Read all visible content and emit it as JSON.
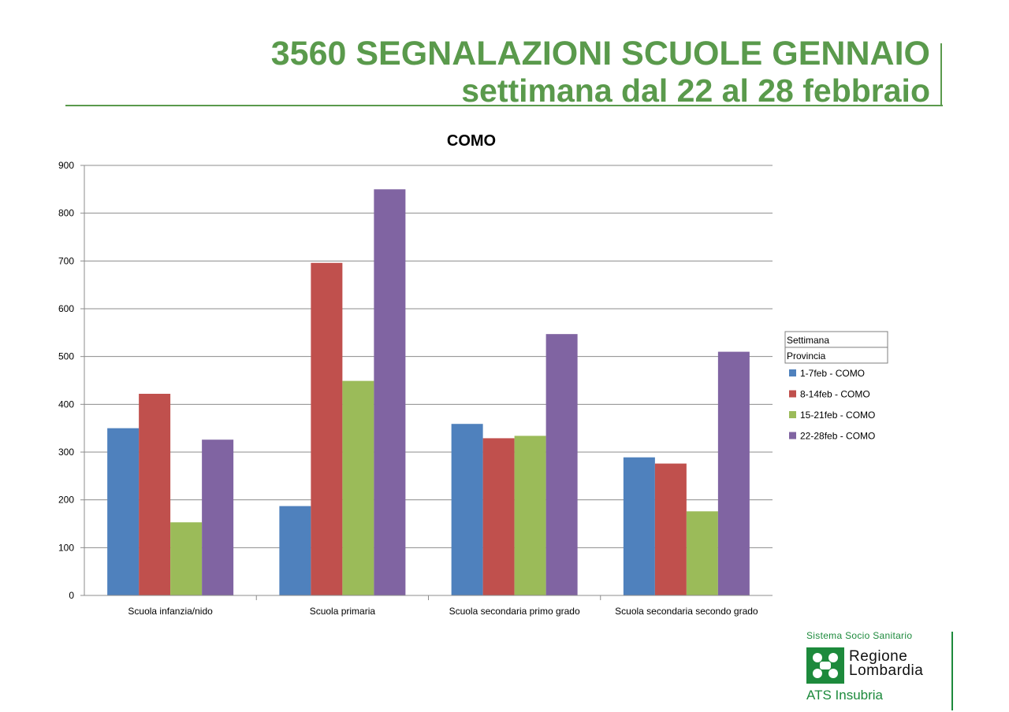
{
  "header": {
    "title_line1": "3560 SEGNALAZIONI SCUOLE GENNAIO",
    "title_line2": "settimana dal 22 al 28 febbraio"
  },
  "chart_data": {
    "type": "bar",
    "title": "COMO",
    "xlabel": "",
    "ylabel": "",
    "ylim": [
      0,
      900
    ],
    "yticks": [
      0,
      100,
      200,
      300,
      400,
      500,
      600,
      700,
      800,
      900
    ],
    "grid": true,
    "legend_placement": "right",
    "legend_header": [
      "Settimana",
      "Provincia"
    ],
    "categories": [
      "Scuola infanzia/nido",
      "Scuola primaria",
      "Scuola secondaria primo grado",
      "Scuola secondaria secondo grado"
    ],
    "series": [
      {
        "name": "1-7feb - COMO",
        "color": "#4f81bd",
        "values": [
          350,
          187,
          359,
          289
        ]
      },
      {
        "name": "8-14feb - COMO",
        "color": "#c0504d",
        "values": [
          422,
          696,
          329,
          276
        ]
      },
      {
        "name": "15-21feb - COMO",
        "color": "#9bbb59",
        "values": [
          153,
          449,
          334,
          176
        ]
      },
      {
        "name": "22-28feb - COMO",
        "color": "#8064a2",
        "values": [
          326,
          850,
          547,
          510
        ]
      }
    ]
  },
  "logo": {
    "line1": "Sistema Socio Sanitario",
    "name_line1": "Regione",
    "name_line2": "Lombardia",
    "line3": "ATS Insubria",
    "accent_color": "#1d8a3c"
  }
}
